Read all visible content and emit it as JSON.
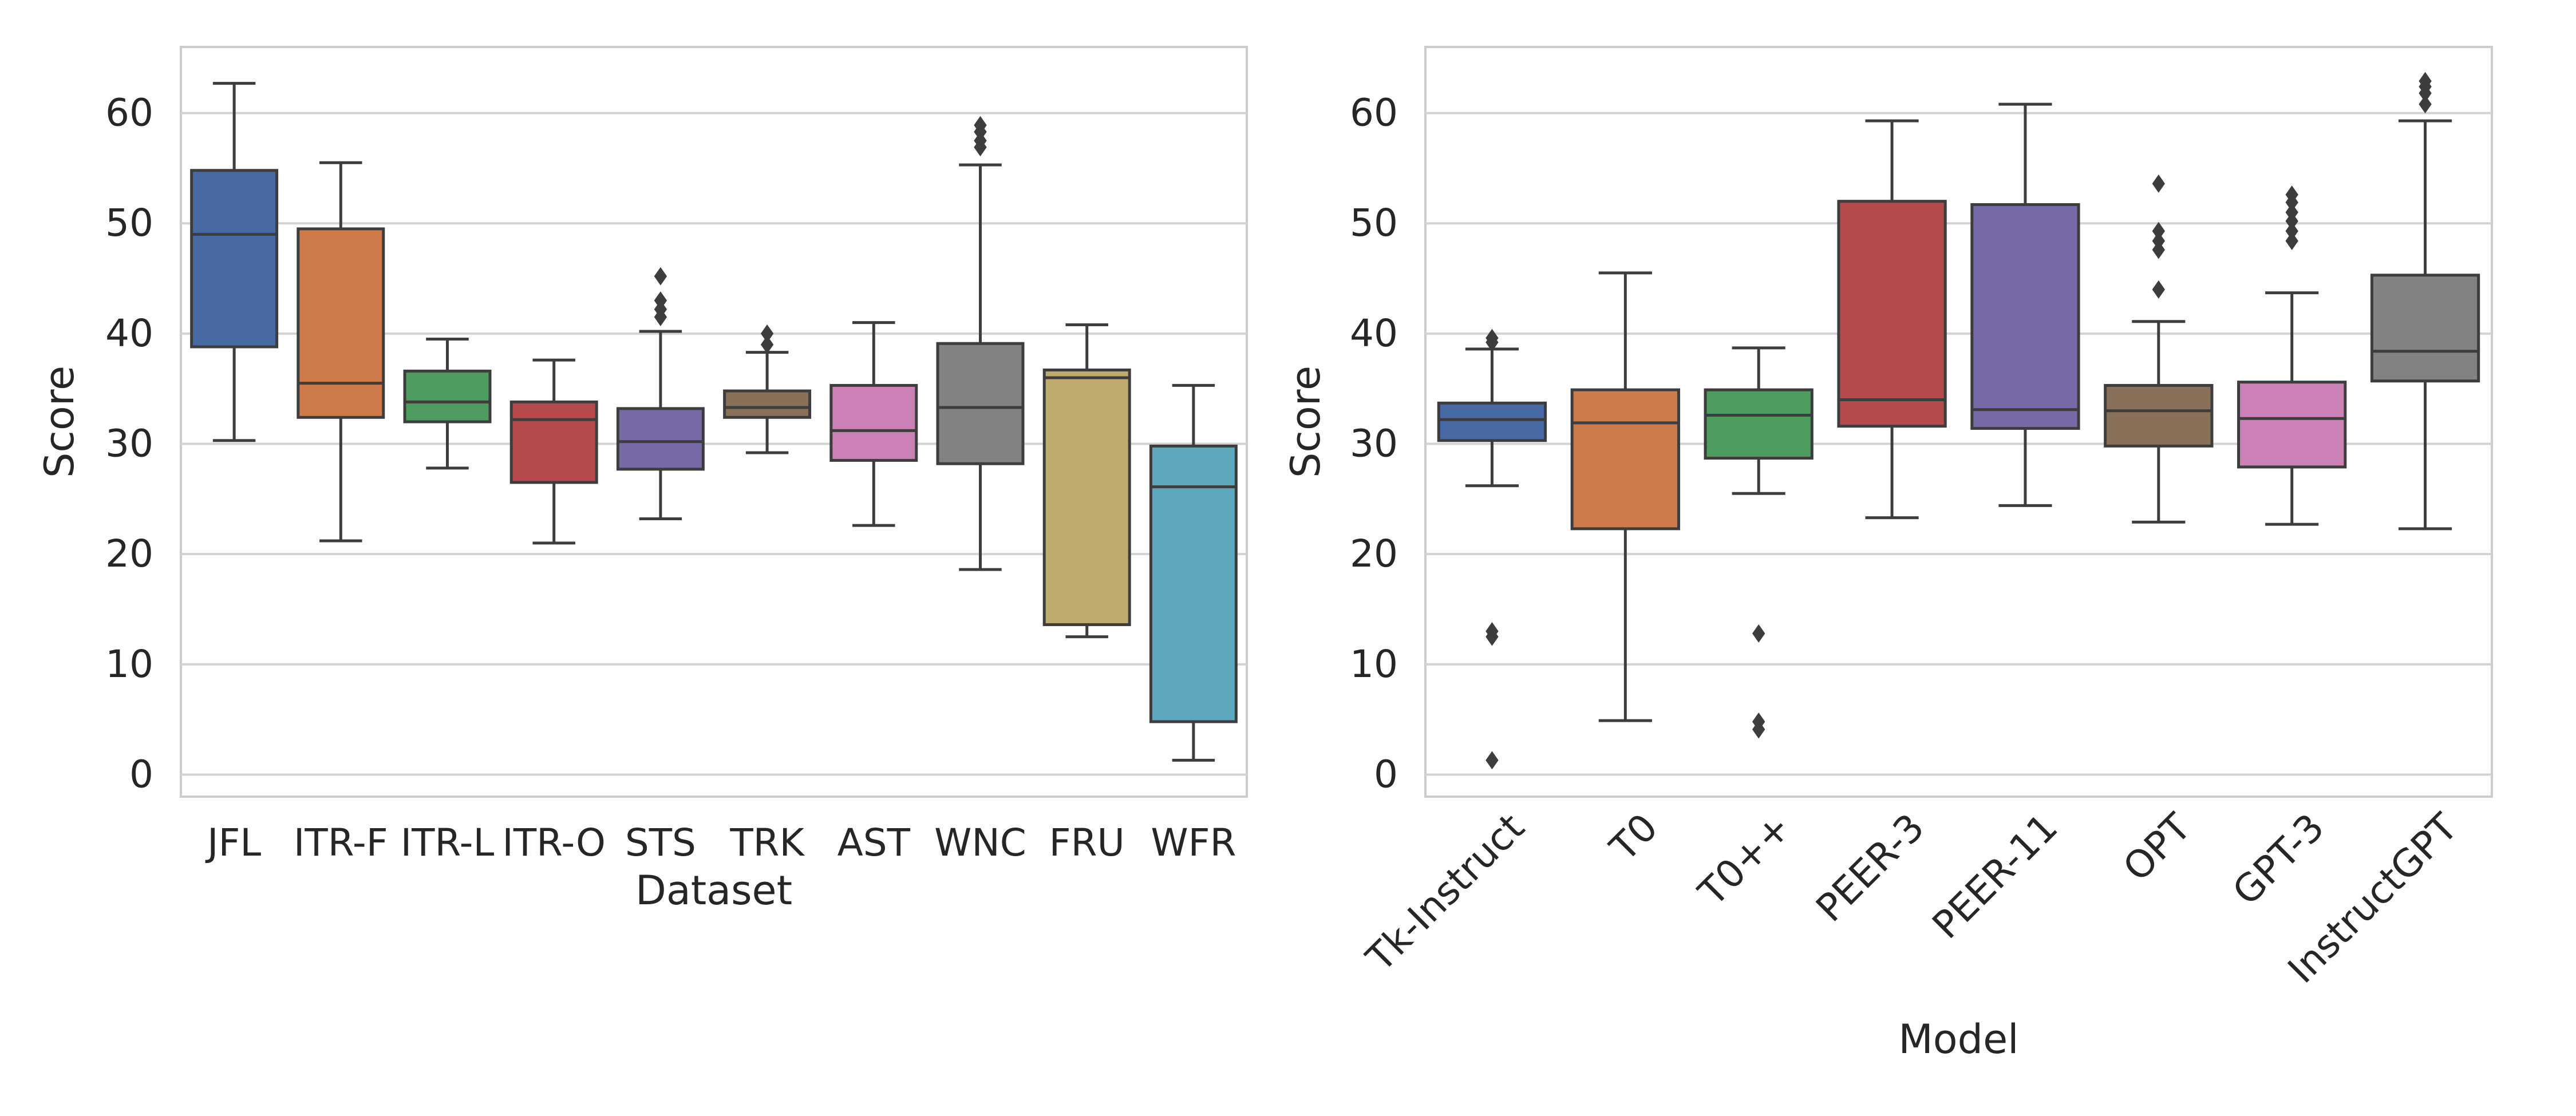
{
  "chart_data": [
    {
      "type": "box",
      "xlabel": "Dataset",
      "ylabel": "Score",
      "ylim": [
        -2,
        66
      ],
      "yticks": [
        0,
        10,
        20,
        30,
        40,
        50,
        60
      ],
      "grid": true,
      "categories": [
        "JFL",
        "ITR-F",
        "ITR-L",
        "ITR-O",
        "STS",
        "TRK",
        "AST",
        "WNC",
        "FRU",
        "WFR"
      ],
      "colors": [
        "#4c72b0",
        "#dd8452",
        "#55a868",
        "#c44e52",
        "#8172b3",
        "#937860",
        "#da8bc3",
        "#8c8c8c",
        "#ccb974",
        "#64b5cd"
      ],
      "boxes": [
        {
          "whisker_low": 30.3,
          "q1": 38.8,
          "median": 49.0,
          "q3": 54.8,
          "whisker_high": 62.7,
          "outliers": []
        },
        {
          "whisker_low": 21.2,
          "q1": 32.4,
          "median": 35.5,
          "q3": 49.5,
          "whisker_high": 55.5,
          "outliers": []
        },
        {
          "whisker_low": 27.8,
          "q1": 32.0,
          "median": 33.8,
          "q3": 36.6,
          "whisker_high": 39.5,
          "outliers": []
        },
        {
          "whisker_low": 21.0,
          "q1": 26.5,
          "median": 32.2,
          "q3": 33.8,
          "whisker_high": 37.6,
          "outliers": []
        },
        {
          "whisker_low": 23.2,
          "q1": 27.7,
          "median": 30.2,
          "q3": 33.2,
          "whisker_high": 40.2,
          "outliers": [
            41.5,
            42.2,
            43.0,
            45.2
          ]
        },
        {
          "whisker_low": 29.2,
          "q1": 32.4,
          "median": 33.3,
          "q3": 34.8,
          "whisker_high": 38.3,
          "outliers": [
            39.0,
            40.0
          ]
        },
        {
          "whisker_low": 22.6,
          "q1": 28.5,
          "median": 31.2,
          "q3": 35.3,
          "whisker_high": 41.0,
          "outliers": []
        },
        {
          "whisker_low": 18.6,
          "q1": 28.2,
          "median": 33.3,
          "q3": 39.1,
          "whisker_high": 55.3,
          "outliers": [
            56.9,
            57.5,
            58.3,
            58.9
          ]
        },
        {
          "whisker_low": 12.5,
          "q1": 13.6,
          "median": 36.0,
          "q3": 36.7,
          "whisker_high": 40.8,
          "outliers": []
        },
        {
          "whisker_low": 1.3,
          "q1": 4.8,
          "median": 26.1,
          "q3": 29.8,
          "whisker_high": 35.3,
          "outliers": []
        }
      ]
    },
    {
      "type": "box",
      "xlabel": "Model",
      "ylabel": "Score",
      "ylim": [
        -2,
        66
      ],
      "yticks": [
        0,
        10,
        20,
        30,
        40,
        50,
        60
      ],
      "grid": true,
      "tick_rotation": -45,
      "categories": [
        "Tk-Instruct",
        "T0",
        "T0++",
        "PEER-3",
        "PEER-11",
        "OPT",
        "GPT-3",
        "InstructGPT"
      ],
      "colors": [
        "#4c72b0",
        "#dd8452",
        "#55a868",
        "#c44e52",
        "#8172b3",
        "#937860",
        "#da8bc3",
        "#8c8c8c"
      ],
      "boxes": [
        {
          "whisker_low": 26.2,
          "q1": 30.3,
          "median": 32.2,
          "q3": 33.7,
          "whisker_high": 38.6,
          "outliers": [
            39.2,
            39.6,
            12.5,
            13.0,
            1.3
          ]
        },
        {
          "whisker_low": 4.9,
          "q1": 22.3,
          "median": 31.9,
          "q3": 34.9,
          "whisker_high": 45.5,
          "outliers": []
        },
        {
          "whisker_low": 25.5,
          "q1": 28.7,
          "median": 32.6,
          "q3": 34.9,
          "whisker_high": 38.7,
          "outliers": [
            12.8,
            4.8,
            4.1
          ]
        },
        {
          "whisker_low": 23.3,
          "q1": 31.6,
          "median": 34.0,
          "q3": 52.0,
          "whisker_high": 59.3,
          "outliers": []
        },
        {
          "whisker_low": 24.4,
          "q1": 31.4,
          "median": 33.1,
          "q3": 51.7,
          "whisker_high": 60.8,
          "outliers": []
        },
        {
          "whisker_low": 22.9,
          "q1": 29.8,
          "median": 33.0,
          "q3": 35.3,
          "whisker_high": 41.1,
          "outliers": [
            44.0,
            47.6,
            48.4,
            49.3,
            53.6
          ]
        },
        {
          "whisker_low": 22.7,
          "q1": 27.9,
          "median": 32.3,
          "q3": 35.6,
          "whisker_high": 43.7,
          "outliers": [
            48.4,
            49.3,
            50.2,
            51.0,
            51.9,
            52.6
          ]
        },
        {
          "whisker_low": 22.3,
          "q1": 35.7,
          "median": 38.4,
          "q3": 45.3,
          "whisker_high": 59.3,
          "outliers": [
            60.8,
            61.8,
            62.4,
            62.9
          ]
        }
      ]
    }
  ]
}
